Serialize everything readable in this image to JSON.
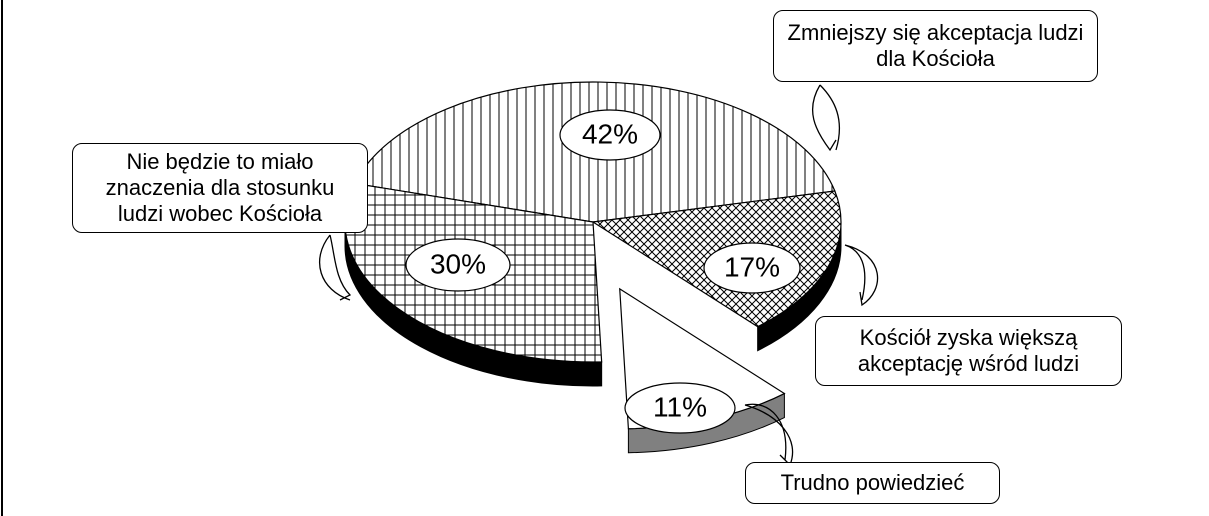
{
  "chart_data": {
    "type": "pie",
    "categories": [
      "Zmniejszy się akceptacja ludzi dla Kościoła",
      "Kościół zyska większą akceptację wśród ludzi",
      "Trudno powiedzieć",
      "Nie będzie to miało znaczenia dla stosunku ludzi wobec Kościoła"
    ],
    "values": [
      42,
      17,
      11,
      30
    ],
    "value_labels": [
      "42%",
      "17%",
      "11%",
      "30%"
    ]
  }
}
